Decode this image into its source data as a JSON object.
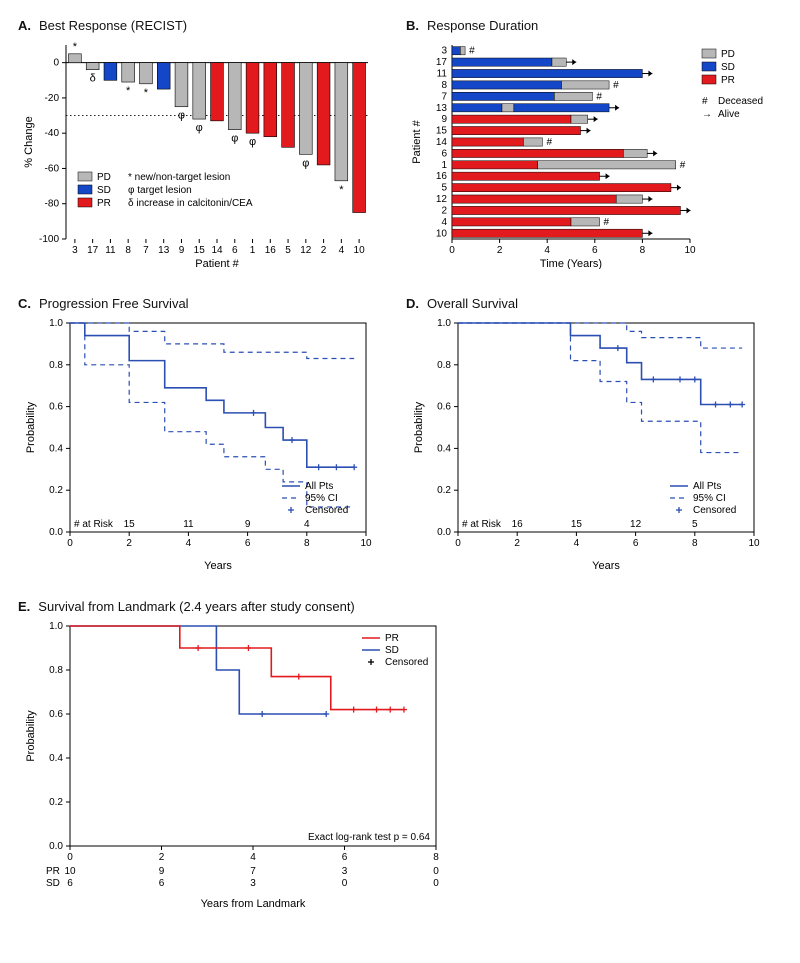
{
  "colors": {
    "pd": "#b7b7b7",
    "sd": "#1447c7",
    "pr": "#e21a1d",
    "kmBlue": "#2b4fb3",
    "kmRed": "#e21a1d",
    "fg": "#111111",
    "grid": "#000000"
  },
  "panelA": {
    "title": "Best Response (RECIST)",
    "label": "A.",
    "xTitle": "Patient #",
    "yTitle": "% Change",
    "ylim": [
      -100,
      10
    ],
    "yticks": [
      0,
      -20,
      -40,
      -60,
      -80,
      -100
    ],
    "refLine": -30,
    "patientOrder": [
      "3",
      "17",
      "11",
      "8",
      "7",
      "13",
      "9",
      "15",
      "14",
      "6",
      "1",
      "16",
      "5",
      "12",
      "2",
      "4",
      "10"
    ],
    "values": {
      "3": 5,
      "17": -4,
      "11": -10,
      "8": -11,
      "7": -12,
      "13": -15,
      "9": -25,
      "15": -32,
      "14": -33,
      "6": -38,
      "1": -40,
      "16": -42,
      "5": -48,
      "12": -52,
      "2": -58,
      "4": -67,
      "10": -85
    },
    "cat": {
      "3": "pd",
      "17": "pd",
      "11": "sd",
      "8": "pd",
      "7": "pd",
      "13": "sd",
      "9": "pd",
      "15": "pd",
      "14": "pr",
      "6": "pd",
      "1": "pr",
      "16": "pr",
      "5": "pr",
      "12": "pd",
      "2": "pr",
      "4": "pd",
      "10": "pr"
    },
    "annot": {
      "3": "*",
      "17": "δ",
      "8": "*",
      "7": "*",
      "9": "φ",
      "15": "φ",
      "6": "φ",
      "1": "φ",
      "12": "φ",
      "4": "*"
    },
    "legend": [
      {
        "k": "PD",
        "c": "pd"
      },
      {
        "k": "SD",
        "c": "sd"
      },
      {
        "k": "PR",
        "c": "pr"
      }
    ],
    "legend2": [
      "*  new/non-target lesion",
      "φ  target lesion",
      "δ  increase in calcitonin/CEA"
    ]
  },
  "panelB": {
    "title": "Response Duration",
    "label": "B.",
    "xTitle": "Time (Years)",
    "yTitle": "Patient #",
    "xlim": [
      0,
      10
    ],
    "xticks": [
      0,
      2,
      4,
      6,
      8,
      10
    ],
    "patients": [
      "3",
      "17",
      "11",
      "8",
      "7",
      "13",
      "9",
      "15",
      "14",
      "6",
      "1",
      "16",
      "5",
      "12",
      "2",
      "4",
      "10"
    ],
    "segs": {
      "3": [
        {
          "c": "sd",
          "e": 0.35
        },
        {
          "c": "pd",
          "e": 0.55
        }
      ],
      "17": [
        {
          "c": "sd",
          "e": 4.2
        },
        {
          "c": "pd",
          "e": 4.8
        }
      ],
      "11": [
        {
          "c": "sd",
          "e": 8.0
        }
      ],
      "8": [
        {
          "c": "sd",
          "e": 4.6
        },
        {
          "c": "pd",
          "e": 6.6
        }
      ],
      "7": [
        {
          "c": "sd",
          "e": 4.3
        },
        {
          "c": "pd",
          "e": 5.9
        }
      ],
      "13": [
        {
          "c": "sd",
          "e": 2.1
        },
        {
          "c": "pd",
          "e": 2.6
        },
        {
          "c": "sd",
          "e": 6.6
        }
      ],
      "9": [
        {
          "c": "pr",
          "e": 5.0
        },
        {
          "c": "pd",
          "e": 5.7
        }
      ],
      "15": [
        {
          "c": "pr",
          "e": 5.4
        }
      ],
      "14": [
        {
          "c": "pr",
          "e": 3.0
        },
        {
          "c": "pd",
          "e": 3.8
        }
      ],
      "6": [
        {
          "c": "pr",
          "e": 7.2
        },
        {
          "c": "pd",
          "e": 8.2
        }
      ],
      "1": [
        {
          "c": "pr",
          "e": 3.6
        },
        {
          "c": "pd",
          "e": 9.4
        }
      ],
      "16": [
        {
          "c": "pr",
          "e": 6.2
        }
      ],
      "5": [
        {
          "c": "pr",
          "e": 9.2
        }
      ],
      "12": [
        {
          "c": "pr",
          "e": 6.9
        },
        {
          "c": "pd",
          "e": 8.0
        }
      ],
      "2": [
        {
          "c": "pr",
          "e": 9.6
        }
      ],
      "4": [
        {
          "c": "pr",
          "e": 5.0
        },
        {
          "c": "pd",
          "e": 6.2
        }
      ],
      "10": [
        {
          "c": "pr",
          "e": 8.0
        }
      ]
    },
    "status": {
      "3": "d",
      "17": "a",
      "11": "a",
      "8": "d",
      "7": "d",
      "13": "a",
      "9": "a",
      "15": "a",
      "14": "d",
      "6": "a",
      "1": "d",
      "16": "a",
      "5": "a",
      "12": "a",
      "2": "a",
      "4": "d",
      "10": "a"
    },
    "legend": [
      {
        "k": "PD",
        "c": "pd"
      },
      {
        "k": "SD",
        "c": "sd"
      },
      {
        "k": "PR",
        "c": "pr"
      }
    ],
    "legend2": [
      {
        "sym": "#",
        "t": "Deceased"
      },
      {
        "sym": "→",
        "t": "Alive"
      }
    ]
  },
  "panelC": {
    "title": "Progression Free Survival",
    "label": "C.",
    "xTitle": "Years",
    "yTitle": "Probability",
    "xlim": [
      0,
      10
    ],
    "xticks": [
      0,
      2,
      4,
      6,
      8,
      10
    ],
    "ylim": [
      0,
      1
    ],
    "yticks": [
      0,
      0.2,
      0.4,
      0.6,
      0.8,
      1.0
    ],
    "main": [
      [
        0,
        1.0
      ],
      [
        0.5,
        1.0
      ],
      [
        0.5,
        0.94
      ],
      [
        2.0,
        0.94
      ],
      [
        2.0,
        0.82
      ],
      [
        3.2,
        0.82
      ],
      [
        3.2,
        0.69
      ],
      [
        4.6,
        0.69
      ],
      [
        4.6,
        0.63
      ],
      [
        5.2,
        0.63
      ],
      [
        5.2,
        0.57
      ],
      [
        6.6,
        0.57
      ],
      [
        6.6,
        0.5
      ],
      [
        7.2,
        0.5
      ],
      [
        7.2,
        0.44
      ],
      [
        8.0,
        0.44
      ],
      [
        8.0,
        0.31
      ],
      [
        9.6,
        0.31
      ]
    ],
    "upper": [
      [
        0,
        1.0
      ],
      [
        2.0,
        1.0
      ],
      [
        2.0,
        0.96
      ],
      [
        3.2,
        0.96
      ],
      [
        3.2,
        0.9
      ],
      [
        5.2,
        0.9
      ],
      [
        5.2,
        0.86
      ],
      [
        8.0,
        0.86
      ],
      [
        8.0,
        0.83
      ],
      [
        9.6,
        0.83
      ]
    ],
    "lower": [
      [
        0,
        1.0
      ],
      [
        0.5,
        1.0
      ],
      [
        0.5,
        0.8
      ],
      [
        2.0,
        0.8
      ],
      [
        2.0,
        0.62
      ],
      [
        3.2,
        0.62
      ],
      [
        3.2,
        0.48
      ],
      [
        4.6,
        0.48
      ],
      [
        4.6,
        0.42
      ],
      [
        5.2,
        0.42
      ],
      [
        5.2,
        0.36
      ],
      [
        6.6,
        0.36
      ],
      [
        6.6,
        0.3
      ],
      [
        7.2,
        0.3
      ],
      [
        7.2,
        0.24
      ],
      [
        8.0,
        0.24
      ],
      [
        8.0,
        0.12
      ],
      [
        9.6,
        0.12
      ]
    ],
    "censor": [
      [
        6.2,
        0.57
      ],
      [
        7.5,
        0.44
      ],
      [
        8.4,
        0.31
      ],
      [
        9.0,
        0.31
      ],
      [
        9.6,
        0.31
      ]
    ],
    "atRiskLabel": "# at Risk",
    "atRisk": [
      [
        2,
        15
      ],
      [
        4,
        11
      ],
      [
        6,
        9
      ],
      [
        8,
        4
      ]
    ],
    "legend": [
      "All Pts",
      "95% CI",
      "Censored"
    ]
  },
  "panelD": {
    "title": "Overall Survival",
    "label": "D.",
    "xTitle": "Years",
    "yTitle": "Probability",
    "xlim": [
      0,
      10
    ],
    "xticks": [
      0,
      2,
      4,
      6,
      8,
      10
    ],
    "ylim": [
      0,
      1
    ],
    "yticks": [
      0,
      0.2,
      0.4,
      0.6,
      0.8,
      1.0
    ],
    "main": [
      [
        0,
        1.0
      ],
      [
        3.8,
        1.0
      ],
      [
        3.8,
        0.94
      ],
      [
        4.8,
        0.94
      ],
      [
        4.8,
        0.88
      ],
      [
        5.7,
        0.88
      ],
      [
        5.7,
        0.81
      ],
      [
        6.2,
        0.81
      ],
      [
        6.2,
        0.73
      ],
      [
        7.1,
        0.73
      ],
      [
        7.1,
        0.73
      ],
      [
        8.2,
        0.73
      ],
      [
        8.2,
        0.61
      ],
      [
        9.6,
        0.61
      ]
    ],
    "upper": [
      [
        0,
        1.0
      ],
      [
        5.7,
        1.0
      ],
      [
        5.7,
        0.96
      ],
      [
        6.2,
        0.96
      ],
      [
        6.2,
        0.93
      ],
      [
        8.2,
        0.93
      ],
      [
        8.2,
        0.88
      ],
      [
        9.6,
        0.88
      ]
    ],
    "lower": [
      [
        0,
        1.0
      ],
      [
        3.8,
        1.0
      ],
      [
        3.8,
        0.82
      ],
      [
        4.8,
        0.82
      ],
      [
        4.8,
        0.72
      ],
      [
        5.7,
        0.72
      ],
      [
        5.7,
        0.62
      ],
      [
        6.2,
        0.62
      ],
      [
        6.2,
        0.53
      ],
      [
        8.2,
        0.53
      ],
      [
        8.2,
        0.38
      ],
      [
        9.6,
        0.38
      ]
    ],
    "censor": [
      [
        5.4,
        0.88
      ],
      [
        6.6,
        0.73
      ],
      [
        7.5,
        0.73
      ],
      [
        8.0,
        0.73
      ],
      [
        8.7,
        0.61
      ],
      [
        9.2,
        0.61
      ],
      [
        9.6,
        0.61
      ]
    ],
    "atRiskLabel": "# at Risk",
    "atRisk": [
      [
        2,
        16
      ],
      [
        4,
        15
      ],
      [
        6,
        12
      ],
      [
        8,
        5
      ]
    ],
    "legend": [
      "All Pts",
      "95% CI",
      "Censored"
    ]
  },
  "panelE": {
    "title": "Survival from Landmark (2.4 years after study consent)",
    "label": "E.",
    "xTitle": "Years from Landmark",
    "yTitle": "Probability",
    "xlim": [
      0,
      8
    ],
    "xticks": [
      0,
      2,
      4,
      6,
      8
    ],
    "ylim": [
      0,
      1
    ],
    "yticks": [
      0,
      0.2,
      0.4,
      0.6,
      0.8,
      1.0
    ],
    "pr": [
      [
        0,
        1.0
      ],
      [
        2.4,
        1.0
      ],
      [
        2.4,
        0.9
      ],
      [
        3.3,
        0.9
      ],
      [
        3.3,
        0.9
      ],
      [
        4.4,
        0.9
      ],
      [
        4.4,
        0.77
      ],
      [
        5.7,
        0.77
      ],
      [
        5.7,
        0.62
      ],
      [
        7.3,
        0.62
      ]
    ],
    "sd": [
      [
        0,
        1.0
      ],
      [
        1.4,
        1.0
      ],
      [
        1.4,
        1.0
      ],
      [
        3.2,
        1.0
      ],
      [
        3.2,
        0.8
      ],
      [
        3.7,
        0.8
      ],
      [
        3.7,
        0.6
      ],
      [
        5.6,
        0.6
      ]
    ],
    "prCensor": [
      [
        2.8,
        0.9
      ],
      [
        3.9,
        0.9
      ],
      [
        5.0,
        0.77
      ],
      [
        6.2,
        0.62
      ],
      [
        6.7,
        0.62
      ],
      [
        7.0,
        0.62
      ],
      [
        7.3,
        0.62
      ]
    ],
    "sdCensor": [
      [
        4.2,
        0.6
      ],
      [
        5.6,
        0.6
      ]
    ],
    "atRiskTitles": [
      "PR",
      "SD"
    ],
    "atRisk": {
      "PR": [
        [
          0,
          10
        ],
        [
          2,
          9
        ],
        [
          4,
          7
        ],
        [
          6,
          3
        ],
        [
          8,
          0
        ]
      ],
      "SD": [
        [
          0,
          6
        ],
        [
          2,
          6
        ],
        [
          4,
          3
        ],
        [
          6,
          0
        ],
        [
          8,
          0
        ]
      ]
    },
    "ptext": "Exact log-rank test p = 0.64",
    "legend": [
      {
        "k": "PR",
        "c": "pr"
      },
      {
        "k": "SD",
        "c": "sd"
      }
    ],
    "censLabel": "Censored"
  }
}
